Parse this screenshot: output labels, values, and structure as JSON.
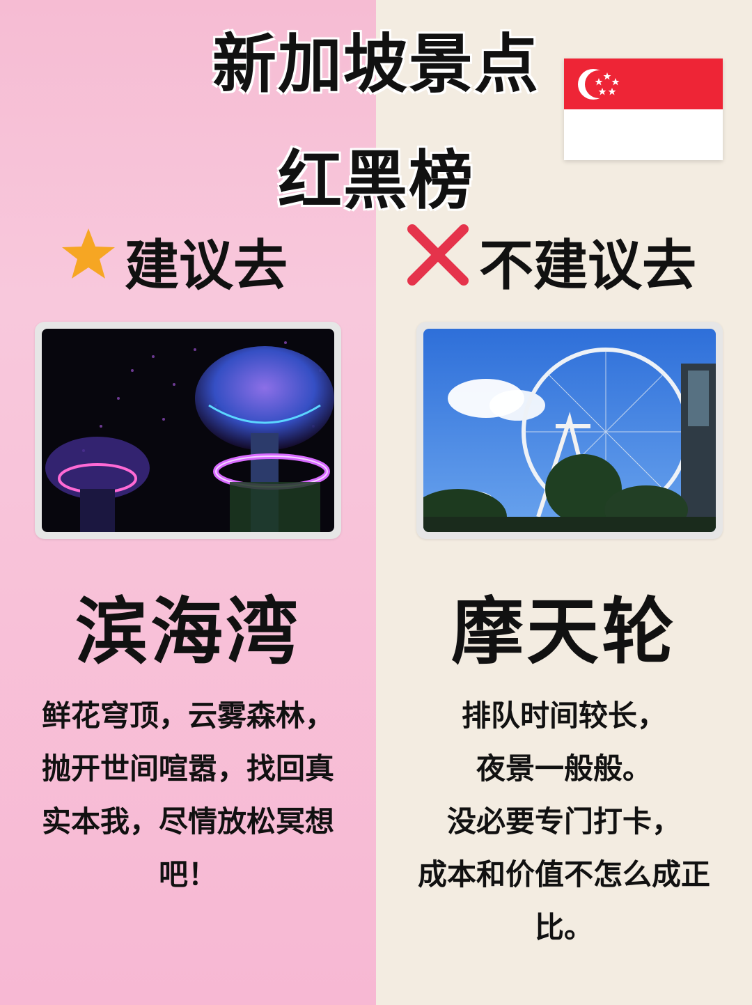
{
  "title": {
    "line1": "新加坡景点",
    "line2": "红黑榜"
  },
  "left": {
    "icon": "star-icon",
    "heading": "建议去",
    "place": "滨海湾",
    "desc_lines": [
      "鲜花穹顶，云雾森林，",
      "抛开世间喧嚣，找回真",
      "实本我，尽情放松冥想",
      "吧！"
    ]
  },
  "right": {
    "icon": "cross-icon",
    "heading": "不建议去",
    "place": "摩天轮",
    "desc_lines": [
      "排队时间较长，",
      "夜景一般般。",
      "没必要专门打卡，",
      "成本和价值不怎么成正",
      "比。"
    ]
  },
  "colors": {
    "left_bg": "#f7bdd5",
    "right_bg": "#f3ece1",
    "flag_red": "#ee2536",
    "star": "#f6a623",
    "cross": "#e5334b"
  }
}
